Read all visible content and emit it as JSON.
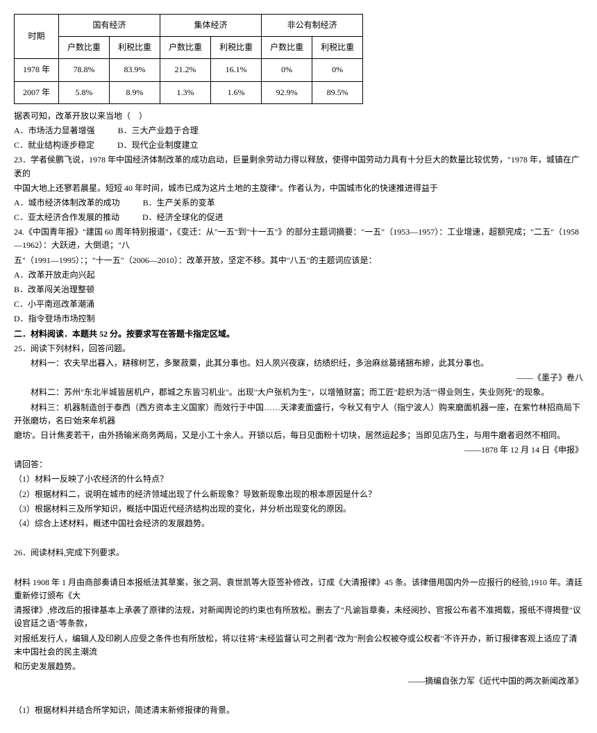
{
  "table": {
    "col_widths": [
      "80px",
      "80px",
      "80px",
      "80px",
      "80px",
      "80px",
      "80px"
    ],
    "header_row1": [
      "时期",
      "国有经济",
      "集体经济",
      "非公有制经济"
    ],
    "header_row2": [
      "户数比重",
      "利税比重",
      "户数比重",
      "利税比重",
      "户数比重",
      "利税比重"
    ],
    "rows": [
      [
        "1978 年",
        "78.8%",
        "83.9%",
        "21.2%",
        "16.1%",
        "0%",
        "0%"
      ],
      [
        "2007 年",
        "5.8%",
        "8.9%",
        "1.3%",
        "1.6%",
        "92.9%",
        "89.5%"
      ]
    ],
    "border_color": "#000000",
    "background": "#ffffff"
  },
  "q22_stem": "据表可知，改革开放以来当地（　）",
  "q22_options": {
    "a": "A．市场活力显著增强",
    "b": "B．三大产业趋于合理",
    "c": "C．就业结构逐步稳定",
    "d": "D．现代企业制度建立"
  },
  "q23": {
    "stem1": "23．学者侯鹏飞说，1978 年中国经济体制改革的成功启动，巨量剩余劳动力得以释放，使得中国劳动力具有十分巨大的数量比较优势，\"1978 年，城镇在广袤的",
    "stem2": "中国大地上还寥若晨星。短短 40 年时间，城市已成为这片土地的主旋律\"。作者认为，中国城市化的快速推进得益于",
    "a": "A．城市经济体制改革的成功",
    "b": "B．生产关系的变革",
    "c": "C．亚太经济合作发展的推动",
    "d": "D．经济全球化的促进"
  },
  "q24": {
    "stem1": "24.《中国青年报》\"建国 60 周年特别报道\"，《变迁：从\"一五\"到\"十一五\"》的部分主题词摘要：\"一五\"（1953—1957）：工业增速，超额完成；\"二五\"（1958—1962）：大跃进，大倒退；\"八",
    "stem2": "五\"（1991—1995）：；\"十一五\"（2006—2010）：改革开放，坚定不移。其中\"八五\"的主题词应该是：",
    "a": "A．改革开放走向兴起",
    "b": "B．改革闯关治理整顿",
    "c": "C．小平南巡改革潮涌",
    "d": "D．指令登场市场控制"
  },
  "section2_title": "二．材料阅读．本题共 52 分。按要求写在答题卡指定区域。",
  "q25": {
    "intro": "25．阅读下列材料，回答问题。",
    "m1": "材料一：农夫早出暮入，耕稼树艺，多聚菽粟，此其分事也。妇人夙兴夜寐，纺绩织纴，多治麻丝葛绪捆布縿，此其分事也。",
    "m1_cite": "——《墨子》卷八",
    "m2": "材料二：苏州\"东北半城皆居机户，郡城之东皆习机业\"。出现\"大户张机为生\"，以增殖财富；而工匠\"趁织为活\"\"得业则生，失业则死\"的现象。",
    "m3": "材料三：机器制造创于泰西（西方资本主义国家）而效行于中国……天津麦面盛行，今秋又有宁人（指宁波人）购来磨面机器一座，在紫竹林招商局下开张磨坊，名曰'始来牟机器",
    "m3_2": "磨坊'。日计焦麦若干，由外扬输米商务两局，又是小工十余人。开锁以后，每日见面粉十切块，居然运起多；当即见店乃生，与用牛磨者迥然不相同。",
    "m3_cite": "——1878 年 12 月 14 日《申报》",
    "ask": "请回答：",
    "q1": "（1）材料一反映了小农经济的什么特点？",
    "q2": "（2）根据材料二，说明在城市的经济领域出现了什么新现象？导致新现象出现的根本原因是什么？",
    "q3": "（3）根据材料三及所学知识，概括中国近代经济结构出现的变化，并分析出现变化的原因。",
    "q4": "（4）综合上述材料，概述中国社会经济的发展趋势。"
  },
  "q26": {
    "intro": "26．阅读材料,完成下列要求。",
    "m_line1": "材料 1908 年 1 月由商部奏请日本报纸法其草案，张之洞、袁世凯等大臣签补修改，订成《大清报律》45 条。该律借用国内外一应报行的经验,1910 年。清廷重新修订颁布《大",
    "m_line2": "清报律》,修改后的报律基本上承袭了原律的法规，对新闻舆论的约束也有所放松。删去了\"凡谕旨章奏，未经阅抄、官报公布者不准揭载，报纸不得揭登\"议设官廷之语\"等条款，",
    "m_line3": "对报纸发行人，编辑人及印刷人应受之条件也有所放松，将以往将\"未经监督认可之刑者\"改为\"刑会公权被夺或公权者\"不许开办，新订报律客观上适应了清末中国社会的民主潮流",
    "m_line4": "和历史发展趋势。",
    "m_cite": "——摘编自张力军《近代中国的两次新闻改革》",
    "q1": "（1）根据材料并结合所学知识，简述清末新修报律的背景。"
  }
}
